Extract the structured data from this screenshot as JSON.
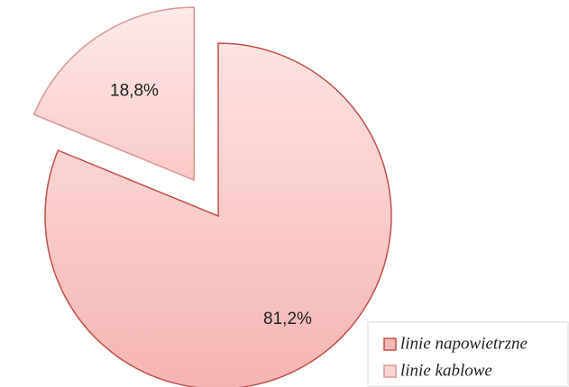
{
  "chart_data": {
    "type": "pie",
    "categories": [
      "linie napowietrzne",
      "linie kablowe"
    ],
    "values": [
      81.2,
      18.8
    ],
    "value_labels": [
      "81,2%",
      "18,8%"
    ],
    "colors": [
      "#f5b9b8",
      "#fbd3d3"
    ],
    "legend": "bottom-right"
  }
}
